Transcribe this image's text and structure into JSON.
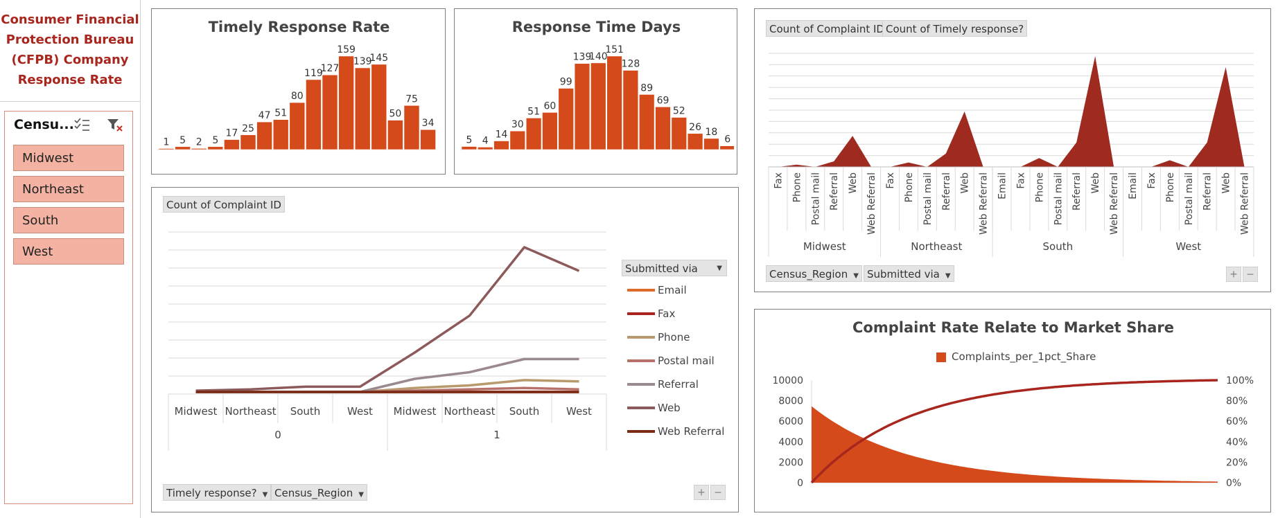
{
  "page_title": "Consumer Financial Protection Bureau (CFPB) Company Response Rate",
  "slicer": {
    "header": "Censu...",
    "items": [
      "Midwest",
      "Northeast",
      "South",
      "West"
    ]
  },
  "colors": {
    "accent": "#d54a1a",
    "dark_red": "#9e2a20",
    "title_red": "#a8261e",
    "slicer_fill": "#f4b3a2"
  },
  "chart_data": [
    {
      "type": "bar",
      "title": "Timely Response Rate",
      "values": [
        1,
        5,
        2,
        5,
        17,
        25,
        47,
        51,
        80,
        119,
        127,
        159,
        139,
        145,
        50,
        75,
        34
      ]
    },
    {
      "type": "bar",
      "title": "Response Time Days",
      "values": [
        5,
        4,
        14,
        30,
        51,
        60,
        99,
        139,
        140,
        151,
        128,
        89,
        69,
        52,
        26,
        18,
        6
      ]
    },
    {
      "type": "line",
      "title": "",
      "field_buttons": [
        "Count of Complaint ID",
        "Timely response?",
        "Census_Region"
      ],
      "legend_title": "Submitted via",
      "outer_categories": [
        "0",
        "1"
      ],
      "categories": [
        "Midwest",
        "Northeast",
        "South",
        "West",
        "Midwest",
        "Northeast",
        "South",
        "West"
      ],
      "series": [
        {
          "name": "Email",
          "color": "#e06a2a",
          "values": [
            0,
            0,
            0,
            0,
            0,
            0,
            0,
            0
          ]
        },
        {
          "name": "Fax",
          "color": "#a8261e",
          "values": [
            0,
            0,
            0,
            0,
            0,
            0,
            0,
            0
          ]
        },
        {
          "name": "Phone",
          "color": "#b89a6e",
          "values": [
            0,
            0,
            0,
            0,
            3,
            5,
            9,
            8
          ]
        },
        {
          "name": "Postal mail",
          "color": "#b8706a",
          "values": [
            0,
            0,
            0,
            0,
            1,
            2,
            3,
            2
          ]
        },
        {
          "name": "Referral",
          "color": "#9a8a8e",
          "values": [
            0,
            0,
            0,
            0,
            10,
            15,
            25,
            25
          ]
        },
        {
          "name": "Web",
          "color": "#8c5a5a",
          "values": [
            1,
            2,
            4,
            4,
            30,
            58,
            110,
            92
          ]
        },
        {
          "name": "Web Referral",
          "color": "#7a2a14",
          "values": [
            0,
            0,
            0,
            0,
            0,
            0,
            0,
            0
          ]
        }
      ]
    },
    {
      "type": "area",
      "title": "",
      "field_buttons": [
        "Count of Complaint ID",
        "Count of Timely response?",
        "Census_Region",
        "Submitted via"
      ],
      "groups": [
        {
          "name": "Midwest",
          "categories": [
            "Fax",
            "Phone",
            "Postal mail",
            "Referral",
            "Web",
            "Web Referral"
          ],
          "values": [
            0,
            2,
            0,
            5,
            28,
            0
          ]
        },
        {
          "name": "Northeast",
          "categories": [
            "Fax",
            "Phone",
            "Postal mail",
            "Referral",
            "Web",
            "Web Referral"
          ],
          "values": [
            0,
            4,
            0,
            12,
            50,
            0
          ]
        },
        {
          "name": "South",
          "categories": [
            "Email",
            "Fax",
            "Phone",
            "Postal mail",
            "Referral",
            "Web",
            "Web Referral"
          ],
          "values": [
            0,
            0,
            8,
            0,
            22,
            100,
            0
          ]
        },
        {
          "name": "West",
          "categories": [
            "Email",
            "Fax",
            "Phone",
            "Postal mail",
            "Referral",
            "Web",
            "Web Referral"
          ],
          "values": [
            0,
            0,
            6,
            0,
            22,
            90,
            0
          ]
        }
      ]
    },
    {
      "type": "area",
      "title": "Complaint Rate Relate to Market Share",
      "legend": [
        "Complaints_per_1pct_Share"
      ],
      "y_ticks": [
        "10000",
        "8000",
        "6000",
        "4000",
        "2000",
        "0"
      ],
      "y2_ticks": [
        "100%",
        "80%",
        "60%",
        "40%",
        "20%",
        "0%"
      ],
      "ylim": [
        0,
        10000
      ],
      "y2lim": [
        0,
        1
      ],
      "area_profile_start": 7400,
      "cumulative_profile": "pareto"
    }
  ]
}
